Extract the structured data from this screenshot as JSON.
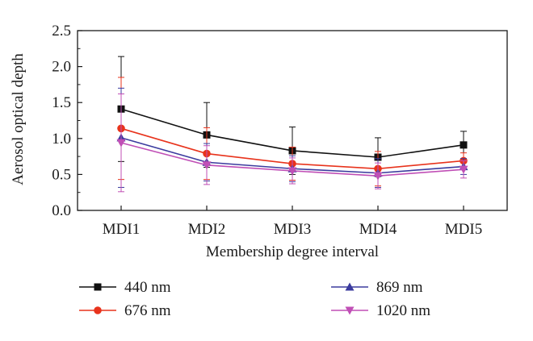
{
  "chart_data": {
    "type": "line",
    "xlabel": "Membership degree interval",
    "ylabel": "Aerosol optical depth",
    "categories": [
      "MDI1",
      "MDI2",
      "MDI3",
      "MDI4",
      "MDI5"
    ],
    "ylim": [
      0,
      2.5
    ],
    "yticks": [
      "0.0",
      "0.5",
      "1.0",
      "1.5",
      "2.0",
      "2.5"
    ],
    "grid": false,
    "legend_position": "bottom",
    "series": [
      {
        "name": "440 nm",
        "color": "#111111",
        "marker": "square",
        "values": [
          1.41,
          1.05,
          0.83,
          0.74,
          0.91
        ],
        "err_upper": [
          2.14,
          1.5,
          1.16,
          1.01,
          1.1
        ],
        "err_lower": [
          0.68,
          0.6,
          0.5,
          0.47,
          0.72
        ]
      },
      {
        "name": "676 nm",
        "color": "#e8331c",
        "marker": "circle",
        "values": [
          1.14,
          0.79,
          0.65,
          0.58,
          0.69
        ],
        "err_upper": [
          1.85,
          1.15,
          0.88,
          0.82,
          0.8
        ],
        "err_lower": [
          0.43,
          0.43,
          0.42,
          0.34,
          0.58
        ]
      },
      {
        "name": "869 nm",
        "color": "#3b3b9e",
        "marker": "triangle-up",
        "values": [
          1.01,
          0.67,
          0.58,
          0.52,
          0.61
        ],
        "err_upper": [
          1.7,
          0.93,
          0.76,
          0.72,
          0.72
        ],
        "err_lower": [
          0.32,
          0.41,
          0.4,
          0.32,
          0.5
        ]
      },
      {
        "name": "1020 nm",
        "color": "#c04fb6",
        "marker": "triangle-down",
        "values": [
          0.94,
          0.63,
          0.55,
          0.48,
          0.57
        ],
        "err_upper": [
          1.62,
          0.9,
          0.73,
          0.66,
          0.69
        ],
        "err_lower": [
          0.26,
          0.36,
          0.37,
          0.3,
          0.45
        ]
      }
    ]
  }
}
